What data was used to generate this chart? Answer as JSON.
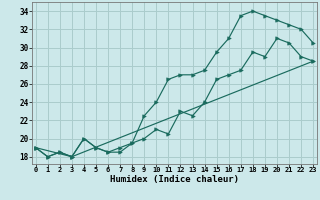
{
  "xlabel": "Humidex (Indice chaleur)",
  "background_color": "#cce8ea",
  "grid_color": "#aacccc",
  "line_color": "#1a6b5e",
  "x_ticks": [
    0,
    1,
    2,
    3,
    4,
    5,
    6,
    7,
    8,
    9,
    10,
    11,
    12,
    13,
    14,
    15,
    16,
    17,
    18,
    19,
    20,
    21,
    22,
    23
  ],
  "y_ticks": [
    18,
    20,
    22,
    24,
    26,
    28,
    30,
    32,
    34
  ],
  "xlim": [
    -0.3,
    23.3
  ],
  "ylim": [
    17.2,
    35.0
  ],
  "line1_x": [
    0,
    1,
    2,
    3,
    4,
    5,
    6,
    7,
    8,
    9,
    10,
    11,
    12,
    13,
    14,
    15,
    16,
    17,
    18,
    19,
    20,
    21,
    22,
    23
  ],
  "line1_y": [
    19.0,
    18.0,
    18.5,
    18.0,
    20.0,
    19.0,
    18.5,
    18.5,
    19.5,
    20.0,
    21.0,
    20.5,
    23.0,
    22.5,
    24.0,
    26.5,
    27.0,
    27.5,
    29.5,
    29.0,
    31.0,
    30.5,
    29.0,
    28.5
  ],
  "line2_x": [
    0,
    1,
    2,
    3,
    4,
    5,
    6,
    7,
    8,
    9,
    10,
    11,
    12,
    13,
    14,
    15,
    16,
    17,
    18,
    19,
    20,
    21,
    22,
    23
  ],
  "line2_y": [
    19.0,
    18.0,
    18.5,
    18.0,
    20.0,
    19.0,
    18.5,
    19.0,
    19.5,
    22.5,
    24.0,
    26.5,
    27.0,
    27.0,
    27.5,
    29.5,
    31.0,
    33.5,
    34.0,
    33.5,
    33.0,
    32.5,
    32.0,
    30.5
  ],
  "line3_x": [
    0,
    3,
    23
  ],
  "line3_y": [
    19.0,
    18.0,
    28.5
  ]
}
